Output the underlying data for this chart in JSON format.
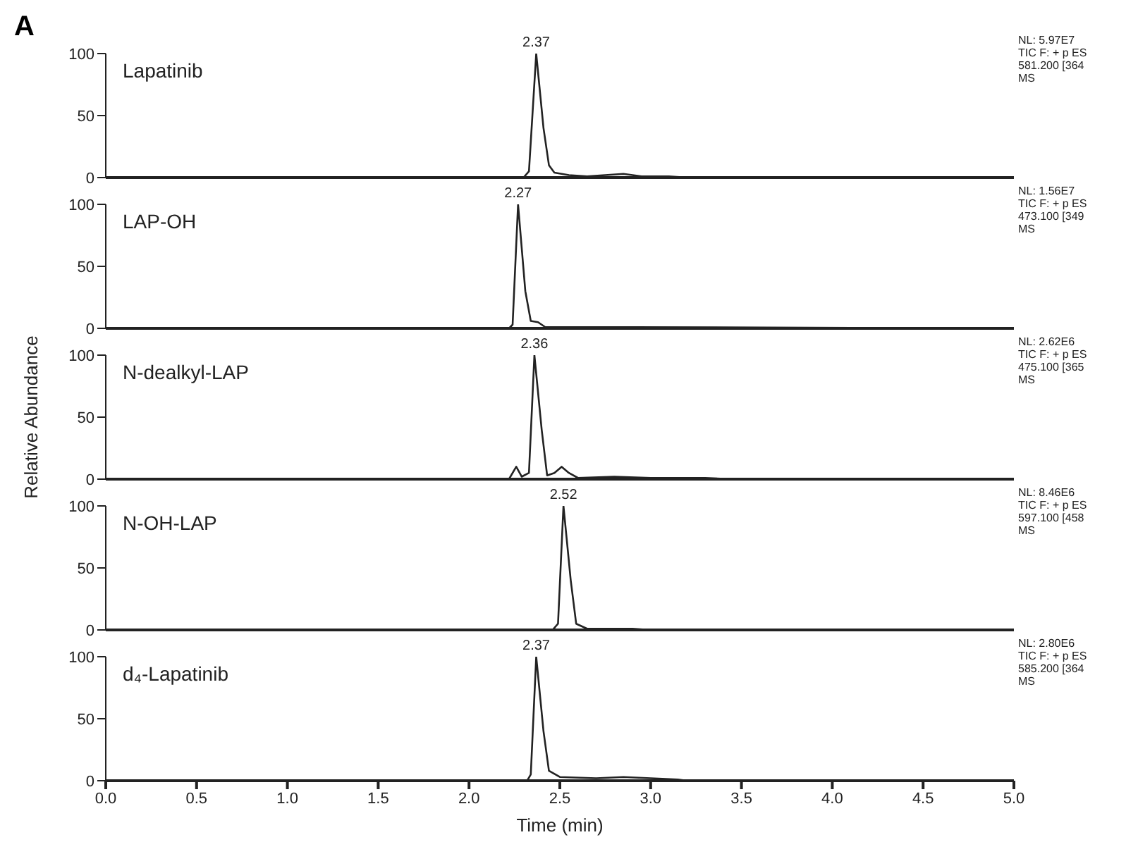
{
  "chart_data": [
    {
      "type": "line",
      "title": "A",
      "tick_labels": "y",
      "xlim": [
        0,
        5
      ],
      "ylim": [
        0,
        100
      ],
      "yticks": [
        0,
        50,
        100
      ],
      "marker": "none",
      "line_style": "solid",
      "grid": false,
      "series": [
        {
          "name": "Lapatinib",
          "color": "#222222",
          "x": [
            0,
            2.3,
            2.33,
            2.37,
            2.41,
            2.44,
            2.47,
            2.55,
            2.65,
            2.75,
            2.85,
            2.95,
            3.1,
            3.2,
            5
          ],
          "values": [
            0,
            0,
            5,
            100,
            40,
            10,
            4,
            2,
            1,
            2,
            3,
            1,
            1,
            0,
            0
          ]
        }
      ],
      "annotations": [
        {
          "text": "2.37",
          "x": 2.37,
          "y": 100
        },
        "NL: 5.97E7",
        "TIC F: + p ES",
        "581.200 [364",
        "MS"
      ]
    },
    {
      "type": "line",
      "tick_labels": "y",
      "xlim": [
        0,
        5
      ],
      "ylim": [
        0,
        100
      ],
      "yticks": [
        0,
        50,
        100
      ],
      "marker": "none",
      "line_style": "solid",
      "grid": false,
      "series": [
        {
          "name": "LAP-OH",
          "color": "#222222",
          "x": [
            0,
            2.22,
            2.24,
            2.27,
            2.31,
            2.34,
            2.38,
            2.42,
            2.6,
            2.8,
            2.9,
            5
          ],
          "values": [
            0,
            0,
            3,
            100,
            30,
            6,
            5,
            1,
            1,
            1,
            1,
            0
          ]
        }
      ],
      "annotations": [
        {
          "text": "2.27",
          "x": 2.27,
          "y": 100
        },
        "NL: 1.56E7",
        "TIC F: + p ES",
        "473.100 [349",
        "MS"
      ]
    },
    {
      "type": "line",
      "tick_labels": "y",
      "ylabel": "Relative Abundance",
      "xlim": [
        0,
        5
      ],
      "ylim": [
        0,
        100
      ],
      "yticks": [
        0,
        50,
        100
      ],
      "marker": "none",
      "line_style": "solid",
      "grid": false,
      "series": [
        {
          "name": "N-dealkyl-LAP",
          "color": "#222222",
          "x": [
            0,
            2.22,
            2.26,
            2.29,
            2.33,
            2.36,
            2.4,
            2.43,
            2.47,
            2.51,
            2.55,
            2.6,
            2.8,
            3.0,
            3.3,
            3.45,
            5
          ],
          "values": [
            0,
            0,
            10,
            2,
            5,
            100,
            40,
            3,
            5,
            10,
            5,
            1,
            2,
            1,
            1,
            0,
            0
          ]
        }
      ],
      "annotations": [
        {
          "text": "2.36",
          "x": 2.36,
          "y": 100
        },
        "NL: 2.62E6",
        "TIC F: + p ES",
        "475.100 [365",
        "MS"
      ]
    },
    {
      "type": "line",
      "tick_labels": "y",
      "xlim": [
        0,
        5
      ],
      "ylim": [
        0,
        100
      ],
      "yticks": [
        0,
        50,
        100
      ],
      "marker": "none",
      "line_style": "solid",
      "grid": false,
      "series": [
        {
          "name": "N-OH-LAP",
          "color": "#222222",
          "x": [
            0,
            2.46,
            2.49,
            2.52,
            2.56,
            2.59,
            2.65,
            2.9,
            3.0,
            5
          ],
          "values": [
            0,
            0,
            5,
            100,
            40,
            5,
            1,
            1,
            0,
            0
          ]
        }
      ],
      "annotations": [
        {
          "text": "2.52",
          "x": 2.52,
          "y": 100
        },
        "NL: 8.46E6",
        "TIC F: + p ES",
        "597.100 [458",
        "MS"
      ]
    },
    {
      "type": "line",
      "xlabel": "Time (min)",
      "xlim": [
        0,
        5
      ],
      "xticks": [
        {
          "value": 0,
          "label": "0.0"
        },
        {
          "value": 0.5,
          "label": "0.5"
        },
        {
          "value": 1,
          "label": "1.0"
        },
        {
          "value": 1.5,
          "label": "1.5"
        },
        {
          "value": 2,
          "label": "2.0"
        },
        {
          "value": 2.5,
          "label": "2.5"
        },
        {
          "value": 3,
          "label": "3.0"
        },
        {
          "value": 3.5,
          "label": "3.5"
        },
        {
          "value": 4,
          "label": "4.0"
        },
        {
          "value": 4.5,
          "label": "4.5"
        },
        {
          "value": 5,
          "label": "5.0"
        }
      ],
      "ylim": [
        0,
        100
      ],
      "yticks": [
        0,
        50,
        100
      ],
      "marker": "none",
      "line_style": "solid",
      "grid": false,
      "series": [
        {
          "name": "d₄-Lapatinib",
          "color": "#222222",
          "x": [
            0,
            2.32,
            2.34,
            2.37,
            2.41,
            2.44,
            2.5,
            2.7,
            2.85,
            3.0,
            3.15,
            3.2,
            5
          ],
          "values": [
            0,
            0,
            5,
            100,
            40,
            8,
            3,
            2,
            3,
            2,
            1,
            0,
            0
          ]
        }
      ],
      "annotations": [
        {
          "text": "2.37",
          "x": 2.37,
          "y": 100
        },
        "NL: 2.80E6",
        "TIC F: + p ES",
        "585.200 [364",
        "MS"
      ]
    }
  ]
}
